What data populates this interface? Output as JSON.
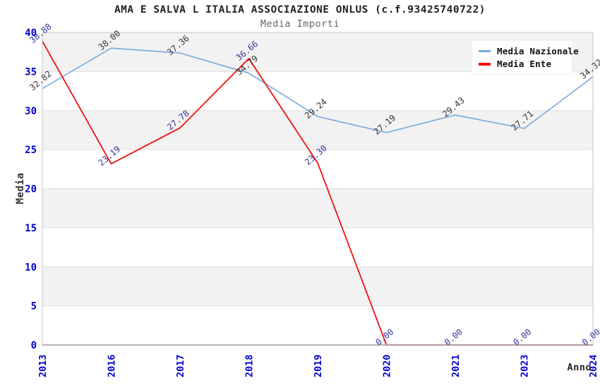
{
  "chart_data": {
    "type": "line",
    "title": "AMA E SALVA L ITALIA ASSOCIAZIONE ONLUS (c.f.93425740722)",
    "subtitle": "Media Importi",
    "xlabel": "Anno",
    "ylabel": "Media",
    "categories": [
      "2013",
      "2016",
      "2017",
      "2018",
      "2019",
      "2020",
      "2021",
      "2023",
      "2024"
    ],
    "series": [
      {
        "name": "Media Nazionale",
        "color": "#77aadd",
        "label_color": "#333333",
        "values": [
          32.82,
          38.0,
          37.36,
          34.79,
          29.24,
          27.19,
          29.43,
          27.71,
          34.32
        ]
      },
      {
        "name": "Media Ente",
        "color": "#ee1111",
        "label_color": "#333399",
        "values": [
          38.88,
          23.19,
          27.78,
          36.66,
          23.3,
          0.0,
          0.0,
          0.0,
          0.0
        ]
      }
    ],
    "ylim": [
      0,
      40
    ],
    "y_ticks": [
      0,
      5,
      10,
      15,
      20,
      25,
      30,
      35,
      40
    ],
    "grid": true,
    "legend_position": "top-right",
    "value_labels_decimals": 2,
    "styles": {
      "tick_label_color": "#0000cc",
      "band_fill": "#f2f2f2",
      "gridline_color": "#e0e0e0",
      "plot_border_color": "#c6c6c6",
      "axis_line_color": "#a8a8a8"
    }
  }
}
